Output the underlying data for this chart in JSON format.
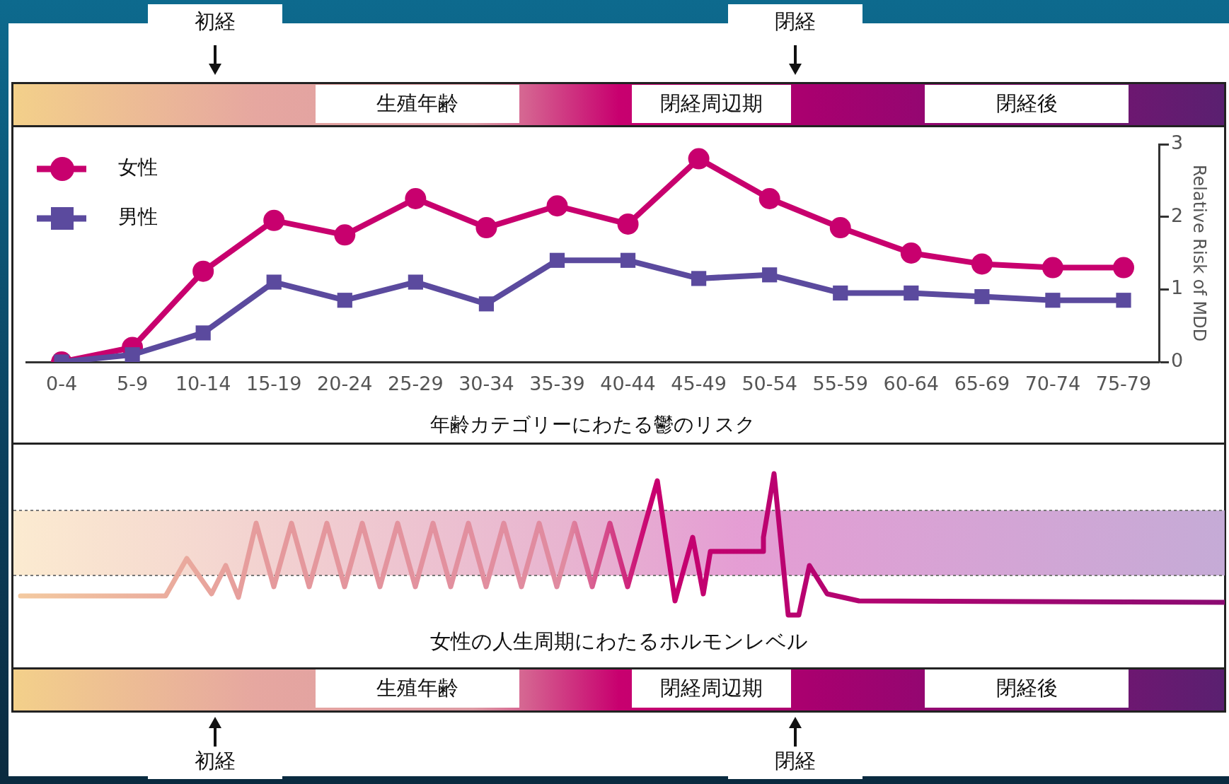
{
  "chart_data": {
    "type": "line",
    "xlabel": "年齢カテゴリーにわたる鬱のリスク",
    "ylabel": "Relative Risk of MDD",
    "categories": [
      "0-4",
      "5-9",
      "10-14",
      "15-19",
      "20-24",
      "25-29",
      "30-34",
      "35-39",
      "40-44",
      "45-49",
      "50-54",
      "55-59",
      "60-64",
      "65-69",
      "70-74",
      "75-79"
    ],
    "series": [
      {
        "name": "女性",
        "color": "#c8006e",
        "marker": "circle",
        "values": [
          0,
          0.2,
          1.25,
          1.95,
          1.75,
          2.25,
          1.85,
          2.15,
          1.9,
          2.8,
          2.25,
          1.85,
          1.5,
          1.35,
          1.3,
          1.3
        ]
      },
      {
        "name": "男性",
        "color": "#5b4a9e",
        "marker": "square",
        "values": [
          0,
          0.1,
          0.4,
          1.1,
          0.85,
          1.1,
          0.8,
          1.4,
          1.4,
          1.15,
          1.2,
          0.95,
          0.95,
          0.9,
          0.85,
          0.85
        ]
      }
    ],
    "ylim": [
      0,
      3
    ],
    "yticks": [
      0,
      1,
      2,
      3
    ],
    "grid": false,
    "legend": "top left",
    "line_style": "solid",
    "annotations": [
      "初経",
      "閉経",
      "生殖年齢",
      "閉経周辺期",
      "閉経後",
      "女性の人生周期にわたるホルモンレベル",
      "生殖年齢",
      "閉経周辺期",
      "閉経後",
      "初経",
      "閉経"
    ]
  }
}
